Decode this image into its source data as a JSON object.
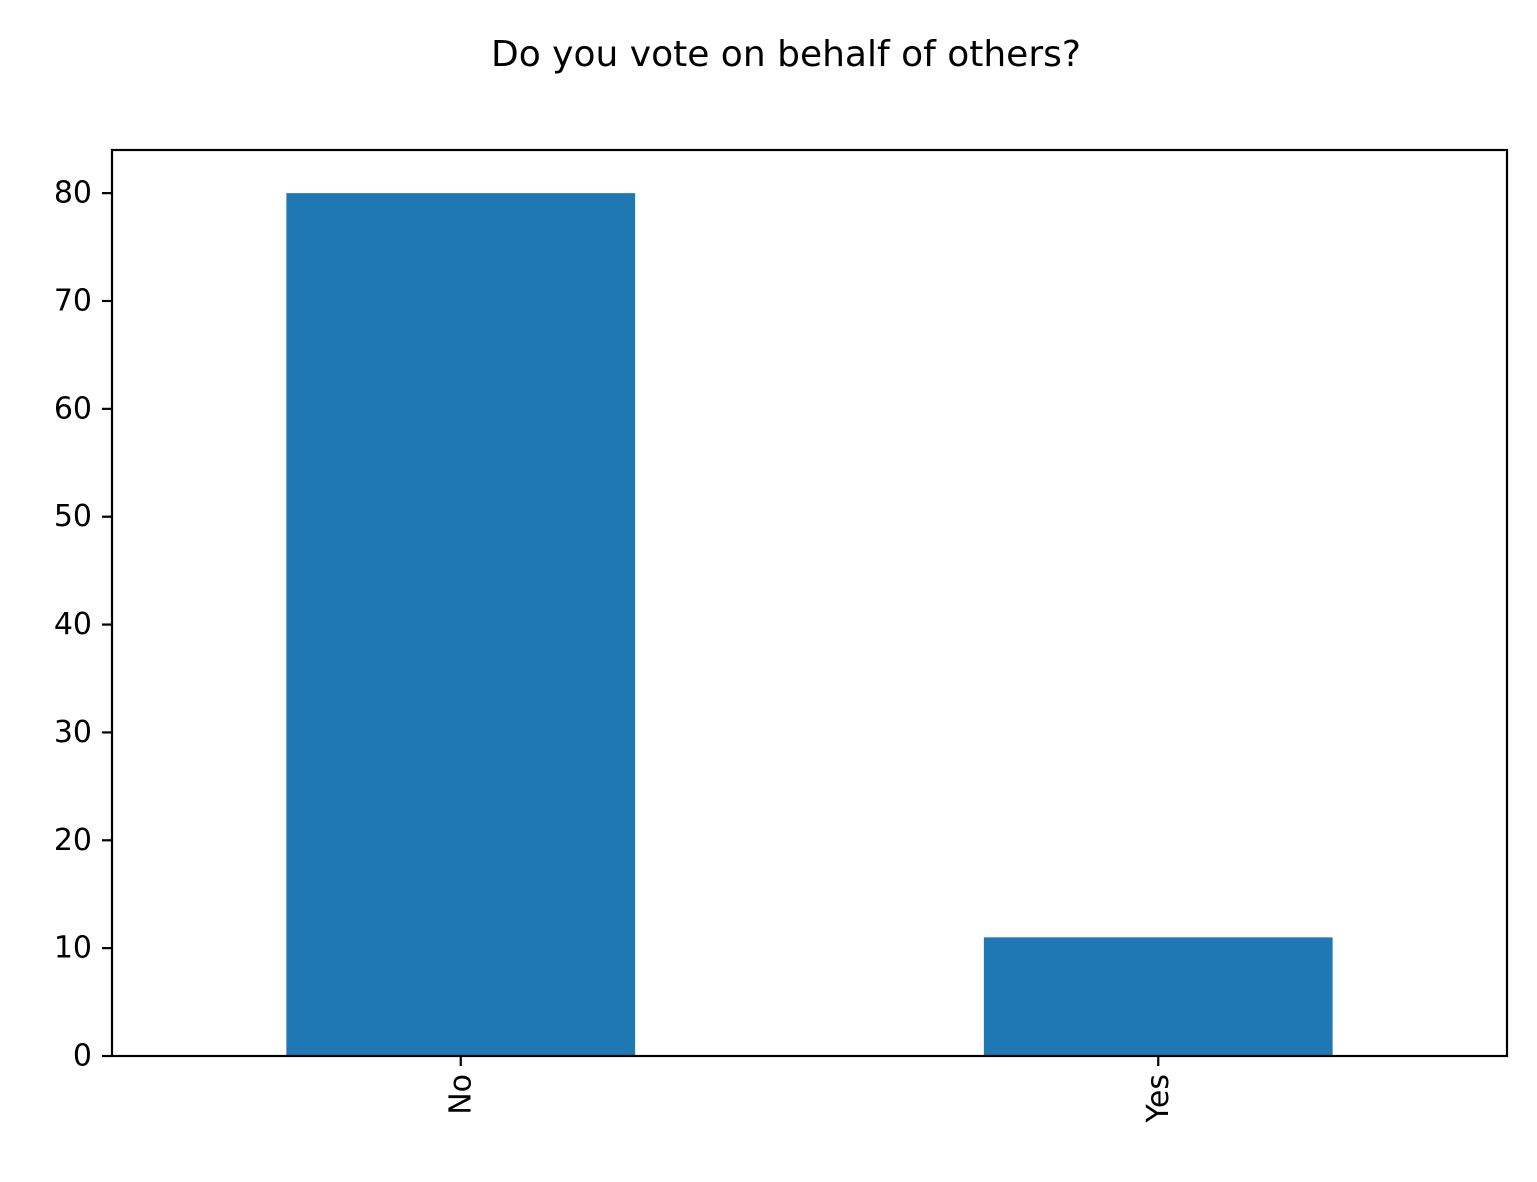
{
  "chart_data": {
    "type": "bar",
    "title": "Do you vote on behalf of others?",
    "xlabel": "",
    "ylabel": "",
    "categories": [
      "No",
      "Yes"
    ],
    "values": [
      80,
      11
    ],
    "ylim": [
      0,
      84
    ],
    "yticks": [
      0,
      10,
      20,
      30,
      40,
      50,
      60,
      70,
      80
    ],
    "grid": false,
    "legend": "none",
    "bar_color": "#1f77b4",
    "x_tick_rotation": "vertical"
  }
}
